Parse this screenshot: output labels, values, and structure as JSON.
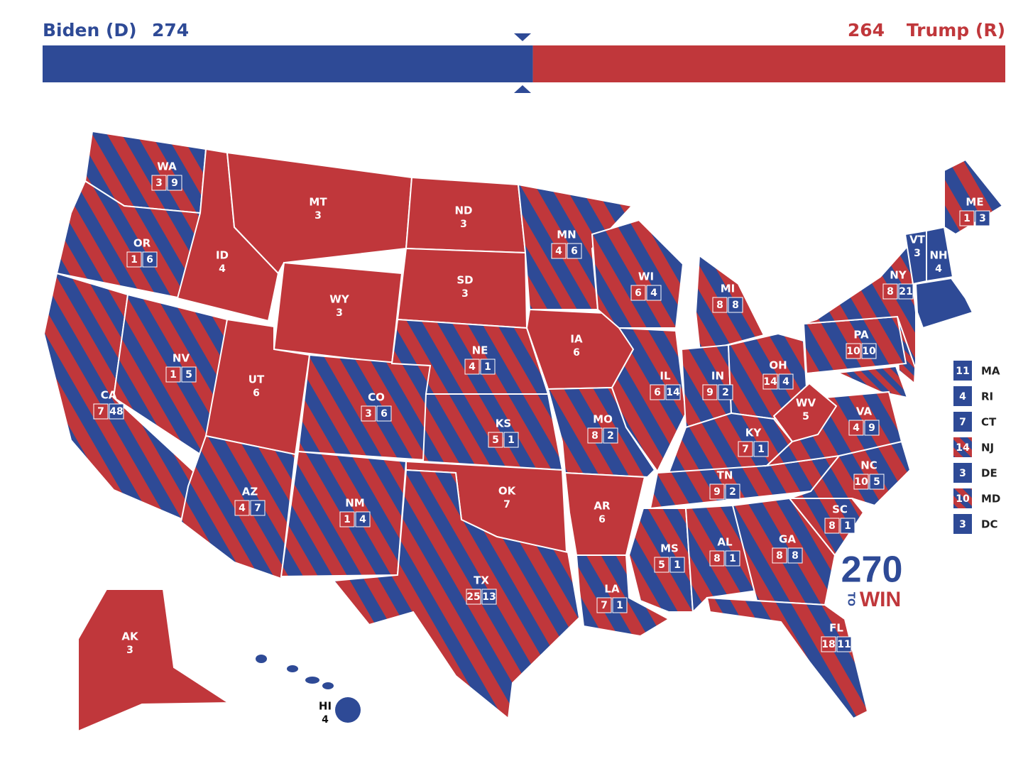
{
  "header": {
    "dem_label": "Biden (D)",
    "dem_total": 274,
    "rep_total": 264,
    "rep_label": "Trump (R)"
  },
  "states": [
    {
      "abbr": "WA",
      "rep": 3,
      "dem": 9
    },
    {
      "abbr": "OR",
      "rep": 1,
      "dem": 6
    },
    {
      "abbr": "CA",
      "rep": 7,
      "dem": 48
    },
    {
      "abbr": "NV",
      "rep": 1,
      "dem": 5
    },
    {
      "abbr": "ID",
      "rep": 4
    },
    {
      "abbr": "MT",
      "rep": 3
    },
    {
      "abbr": "WY",
      "rep": 3
    },
    {
      "abbr": "UT",
      "rep": 6
    },
    {
      "abbr": "AZ",
      "rep": 4,
      "dem": 7
    },
    {
      "abbr": "CO",
      "rep": 3,
      "dem": 6
    },
    {
      "abbr": "NM",
      "rep": 1,
      "dem": 4
    },
    {
      "abbr": "ND",
      "rep": 3
    },
    {
      "abbr": "SD",
      "rep": 3
    },
    {
      "abbr": "NE",
      "rep": 4,
      "dem": 1
    },
    {
      "abbr": "KS",
      "rep": 5,
      "dem": 1
    },
    {
      "abbr": "OK",
      "rep": 7
    },
    {
      "abbr": "TX",
      "rep": 25,
      "dem": 13
    },
    {
      "abbr": "MN",
      "rep": 4,
      "dem": 6
    },
    {
      "abbr": "IA",
      "rep": 6
    },
    {
      "abbr": "MO",
      "rep": 8,
      "dem": 2
    },
    {
      "abbr": "AR",
      "rep": 6
    },
    {
      "abbr": "LA",
      "rep": 7,
      "dem": 1
    },
    {
      "abbr": "WI",
      "rep": 6,
      "dem": 4
    },
    {
      "abbr": "IL",
      "rep": 6,
      "dem": 14
    },
    {
      "abbr": "MI",
      "rep": 8,
      "dem": 8
    },
    {
      "abbr": "IN",
      "rep": 9,
      "dem": 2
    },
    {
      "abbr": "OH",
      "rep": 14,
      "dem": 4
    },
    {
      "abbr": "KY",
      "rep": 7,
      "dem": 1
    },
    {
      "abbr": "TN",
      "rep": 9,
      "dem": 2
    },
    {
      "abbr": "MS",
      "rep": 5,
      "dem": 1
    },
    {
      "abbr": "AL",
      "rep": 8,
      "dem": 1
    },
    {
      "abbr": "GA",
      "rep": 8,
      "dem": 8
    },
    {
      "abbr": "FL",
      "rep": 18,
      "dem": 11
    },
    {
      "abbr": "SC",
      "rep": 8,
      "dem": 1
    },
    {
      "abbr": "NC",
      "rep": 10,
      "dem": 5
    },
    {
      "abbr": "VA",
      "rep": 4,
      "dem": 9
    },
    {
      "abbr": "WV",
      "rep": 5
    },
    {
      "abbr": "PA",
      "rep": 10,
      "dem": 10
    },
    {
      "abbr": "NY",
      "rep": 8,
      "dem": 21
    },
    {
      "abbr": "VT",
      "dem": 3
    },
    {
      "abbr": "NH",
      "dem": 4
    },
    {
      "abbr": "ME",
      "rep": 1,
      "dem": 3
    },
    {
      "abbr": "AK",
      "rep": 3
    },
    {
      "abbr": "HI",
      "dem": 4
    }
  ],
  "small_states": [
    {
      "abbr": "MA",
      "votes": 11,
      "party": "dem"
    },
    {
      "abbr": "RI",
      "votes": 4,
      "party": "dem"
    },
    {
      "abbr": "CT",
      "votes": 7,
      "party": "dem"
    },
    {
      "abbr": "NJ",
      "votes": 14,
      "party": "split"
    },
    {
      "abbr": "DE",
      "votes": 3,
      "party": "dem"
    },
    {
      "abbr": "MD",
      "votes": 10,
      "party": "split"
    },
    {
      "abbr": "DC",
      "votes": 3,
      "party": "dem"
    }
  ],
  "logo": {
    "number": "270",
    "to": "TO",
    "win": "WIN"
  }
}
